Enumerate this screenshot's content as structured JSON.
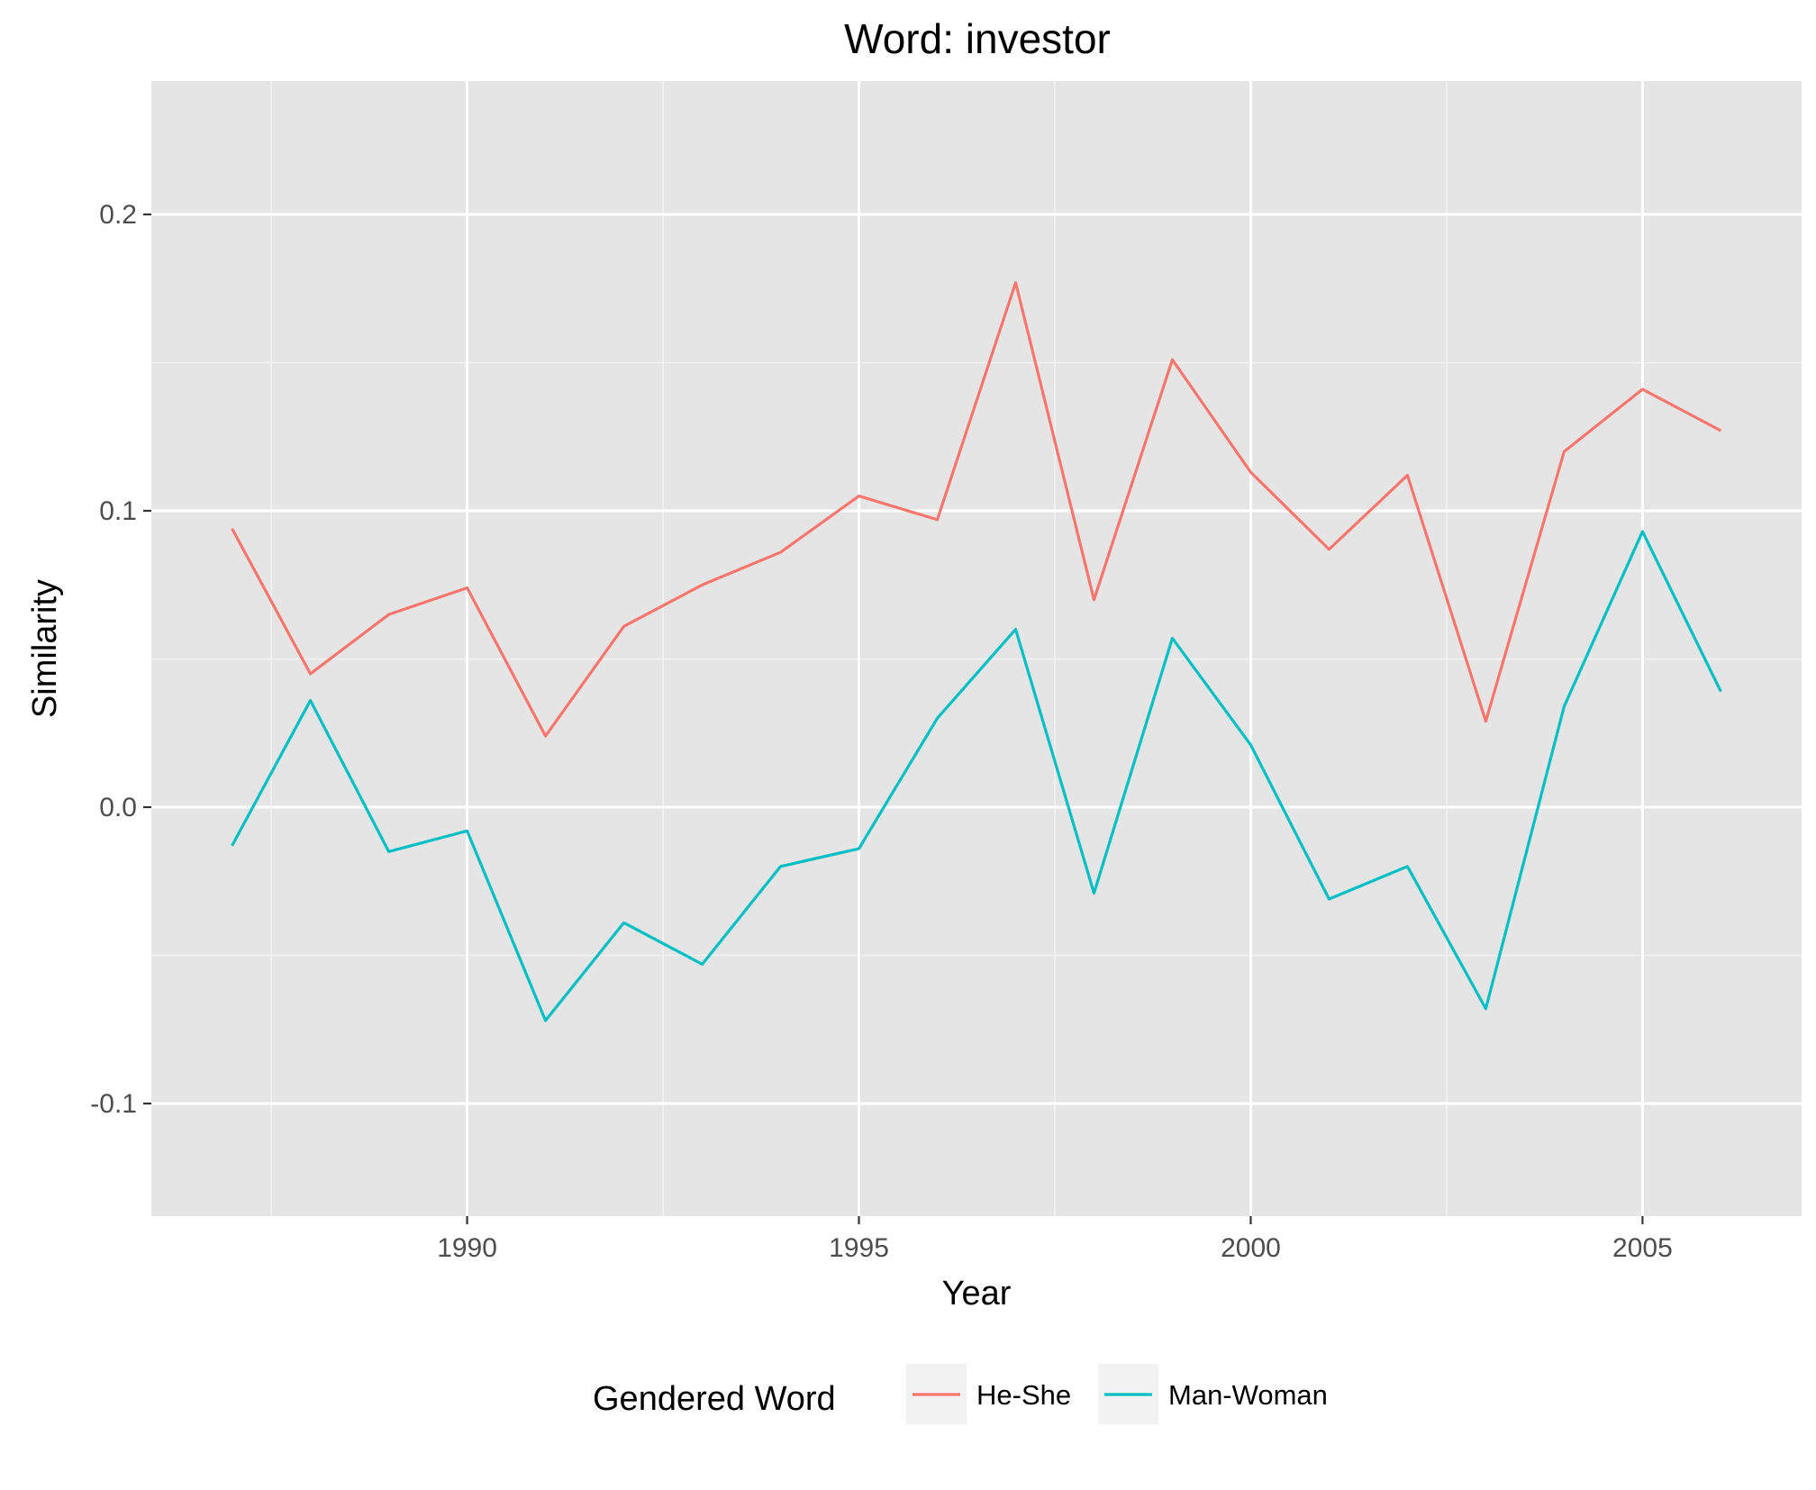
{
  "chart_data": {
    "type": "line",
    "title": "Word: investor",
    "xlabel": "Year",
    "ylabel": "Similarity",
    "x": [
      1987,
      1988,
      1989,
      1990,
      1991,
      1992,
      1993,
      1994,
      1995,
      1996,
      1997,
      1998,
      1999,
      2000,
      2001,
      2002,
      2003,
      2004,
      2005,
      2006
    ],
    "xlim": [
      1985.97,
      2007.03
    ],
    "ylim": [
      -0.138,
      0.245
    ],
    "x_ticks": [
      1990,
      1995,
      2000,
      2005
    ],
    "x_tick_labels": [
      "1990",
      "1995",
      "2000",
      "2005"
    ],
    "y_ticks": [
      -0.1,
      0.0,
      0.1,
      0.2
    ],
    "y_tick_labels": [
      "-0.1",
      "0.0",
      "0.1",
      "0.2"
    ],
    "grid": true,
    "panel_background": "#e5e5e5",
    "legend": {
      "title": "Gendered Word",
      "position": "bottom"
    },
    "series": [
      {
        "name": "He-She",
        "color": "#f8766d",
        "values": [
          0.094,
          0.045,
          0.065,
          0.074,
          0.024,
          0.061,
          0.075,
          0.086,
          0.105,
          0.097,
          0.177,
          0.07,
          0.151,
          0.113,
          0.087,
          0.112,
          0.029,
          0.12,
          0.141,
          0.127
        ]
      },
      {
        "name": "Man-Woman",
        "color": "#00bfc4",
        "values": [
          -0.013,
          0.036,
          -0.015,
          -0.008,
          -0.072,
          -0.039,
          -0.053,
          -0.02,
          -0.014,
          0.03,
          0.06,
          -0.029,
          0.057,
          0.021,
          -0.031,
          -0.02,
          -0.068,
          0.034,
          0.093,
          0.039
        ]
      }
    ]
  }
}
